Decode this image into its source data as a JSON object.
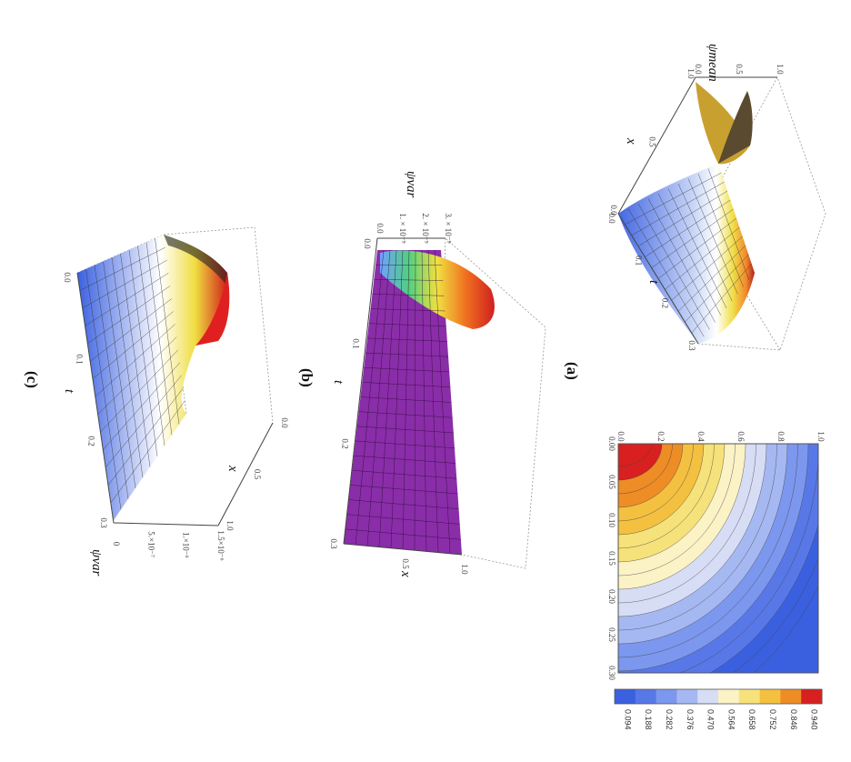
{
  "panels": [
    {
      "label": "(a)"
    },
    {
      "label": "(b)"
    },
    {
      "label": "(c)"
    }
  ],
  "chart_data": [
    {
      "id": "a-surface",
      "type": "surface3d",
      "zlabel": "ψmean",
      "x_axis_label": "x",
      "t_axis_label": "t",
      "x_ticks": [
        "0.0",
        "0.5",
        "1.0"
      ],
      "t_ticks": [
        "0.0",
        "0.1",
        "0.2",
        "0.3"
      ],
      "z_ticks": [
        "0.0",
        "0.5",
        "1.0"
      ],
      "x_range": [
        0,
        1
      ],
      "t_range": [
        0,
        0.3
      ],
      "z_range": [
        0,
        1
      ],
      "colormap": [
        "#3a60e0",
        "#ffffff",
        "#f0dd40",
        "#f08020",
        "#d01818"
      ]
    },
    {
      "id": "a-contour",
      "type": "contour",
      "x_ticks": [
        "0.0",
        "0.2",
        "0.4",
        "0.6",
        "0.8",
        "1.0"
      ],
      "t_ticks": [
        "0.00",
        "0.05",
        "0.10",
        "0.15",
        "0.20",
        "0.25",
        "0.30"
      ],
      "x_range": [
        0,
        1
      ],
      "t_range": [
        0,
        0.3
      ],
      "colorbar_ticks": [
        "0.094",
        "0.188",
        "0.282",
        "0.376",
        "0.470",
        "0.564",
        "0.658",
        "0.752",
        "0.846",
        "0.940"
      ],
      "colorbar_colors": [
        "#3a60e0",
        "#5878e8",
        "#7c97ee",
        "#a6b8f2",
        "#d6ddf4",
        "#fbf2c6",
        "#f6e27a",
        "#f4c040",
        "#ee8c26",
        "#d82020"
      ],
      "levels": 20
    },
    {
      "id": "b-surface",
      "type": "surface3d",
      "zlabel": "ψvar",
      "x_axis_label": "x",
      "t_axis_label": "t",
      "x_ticks": [
        "0.5",
        "1.0"
      ],
      "t_ticks": [
        "0.0",
        "0.1",
        "0.2",
        "0.3"
      ],
      "z_ticks": [
        "0.0",
        "1. × 10⁻⁹",
        "2. × 10⁻⁹",
        "3. × 10⁻⁹"
      ],
      "z_range": [
        0,
        3e-09
      ],
      "surface_color": "#8a2da8"
    },
    {
      "id": "c-surface",
      "type": "surface3d",
      "zlabel": "ψvar",
      "x_axis_label": "x",
      "t_axis_label": "t",
      "x_ticks": [
        "0.0",
        "0.5",
        "1.0"
      ],
      "t_ticks": [
        "0.0",
        "0.1",
        "0.2",
        "0.3"
      ],
      "z_ticks": [
        "0",
        "5.×10⁻⁷",
        "1.×10⁻⁶",
        "1.5×10⁻⁶"
      ],
      "z_range": [
        0,
        1.5e-06
      ]
    }
  ]
}
